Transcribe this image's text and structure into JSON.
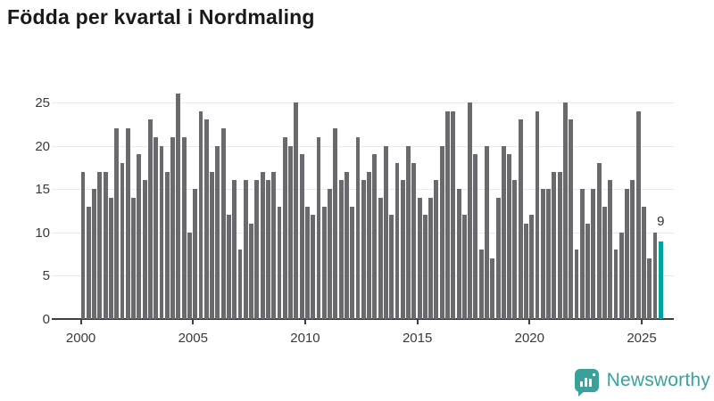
{
  "title": "Födda per kvartal i Nordmaling",
  "annotation": {
    "label": "9"
  },
  "logo": {
    "text": "Newsworthy"
  },
  "colors": {
    "bar": "#6a6a6e",
    "highlight": "#00a49c",
    "grid": "#e9e9e9",
    "axis": "#3f3f3f",
    "tick_text": "#3a3a3a",
    "title_text": "#191919",
    "logo_teal": "#3aa29b"
  },
  "chart_data": {
    "type": "bar",
    "title": "Födda per kvartal i Nordmaling",
    "xlabel": "",
    "ylabel": "",
    "ylim": [
      0,
      26
    ],
    "grid": true,
    "legend_position": "none",
    "x_unit": "quarter",
    "x_range": [
      "2000-Q1",
      "2025-Q4"
    ],
    "y_tick_values": [
      0,
      5,
      10,
      15,
      20,
      25
    ],
    "x_tick_years": [
      2000,
      2005,
      2010,
      2015,
      2020,
      2025
    ],
    "highlight_last_point": true,
    "highlight_value": 9,
    "series": [
      {
        "name": "Födda per kvartal",
        "values_by_year": {
          "2000": [
            17,
            13,
            15,
            17
          ],
          "2001": [
            17,
            14,
            22,
            18
          ],
          "2002": [
            22,
            14,
            19,
            16
          ],
          "2003": [
            23,
            21,
            20,
            17
          ],
          "2004": [
            21,
            26,
            21,
            10
          ],
          "2005": [
            15,
            24,
            23,
            17
          ],
          "2006": [
            20,
            22,
            12,
            16
          ],
          "2007": [
            8,
            16,
            11,
            16
          ],
          "2008": [
            17,
            16,
            17,
            13
          ],
          "2009": [
            21,
            20,
            25,
            19
          ],
          "2010": [
            13,
            12,
            21,
            13
          ],
          "2011": [
            15,
            22,
            16,
            17
          ],
          "2012": [
            13,
            21,
            16,
            17
          ],
          "2013": [
            19,
            14,
            20,
            12
          ],
          "2014": [
            18,
            16,
            20,
            18
          ],
          "2015": [
            14,
            12,
            14,
            16
          ],
          "2016": [
            20,
            24,
            24,
            15
          ],
          "2017": [
            12,
            25,
            19,
            8
          ],
          "2018": [
            20,
            7,
            14,
            20
          ],
          "2019": [
            19,
            16,
            23,
            11
          ],
          "2020": [
            12,
            24,
            15,
            15
          ],
          "2021": [
            17,
            17,
            25,
            23
          ],
          "2022": [
            8,
            15,
            11,
            15
          ],
          "2023": [
            18,
            13,
            16,
            8
          ],
          "2024": [
            10,
            15,
            16,
            24
          ],
          "2025": [
            13,
            7,
            10,
            9
          ]
        }
      }
    ]
  }
}
